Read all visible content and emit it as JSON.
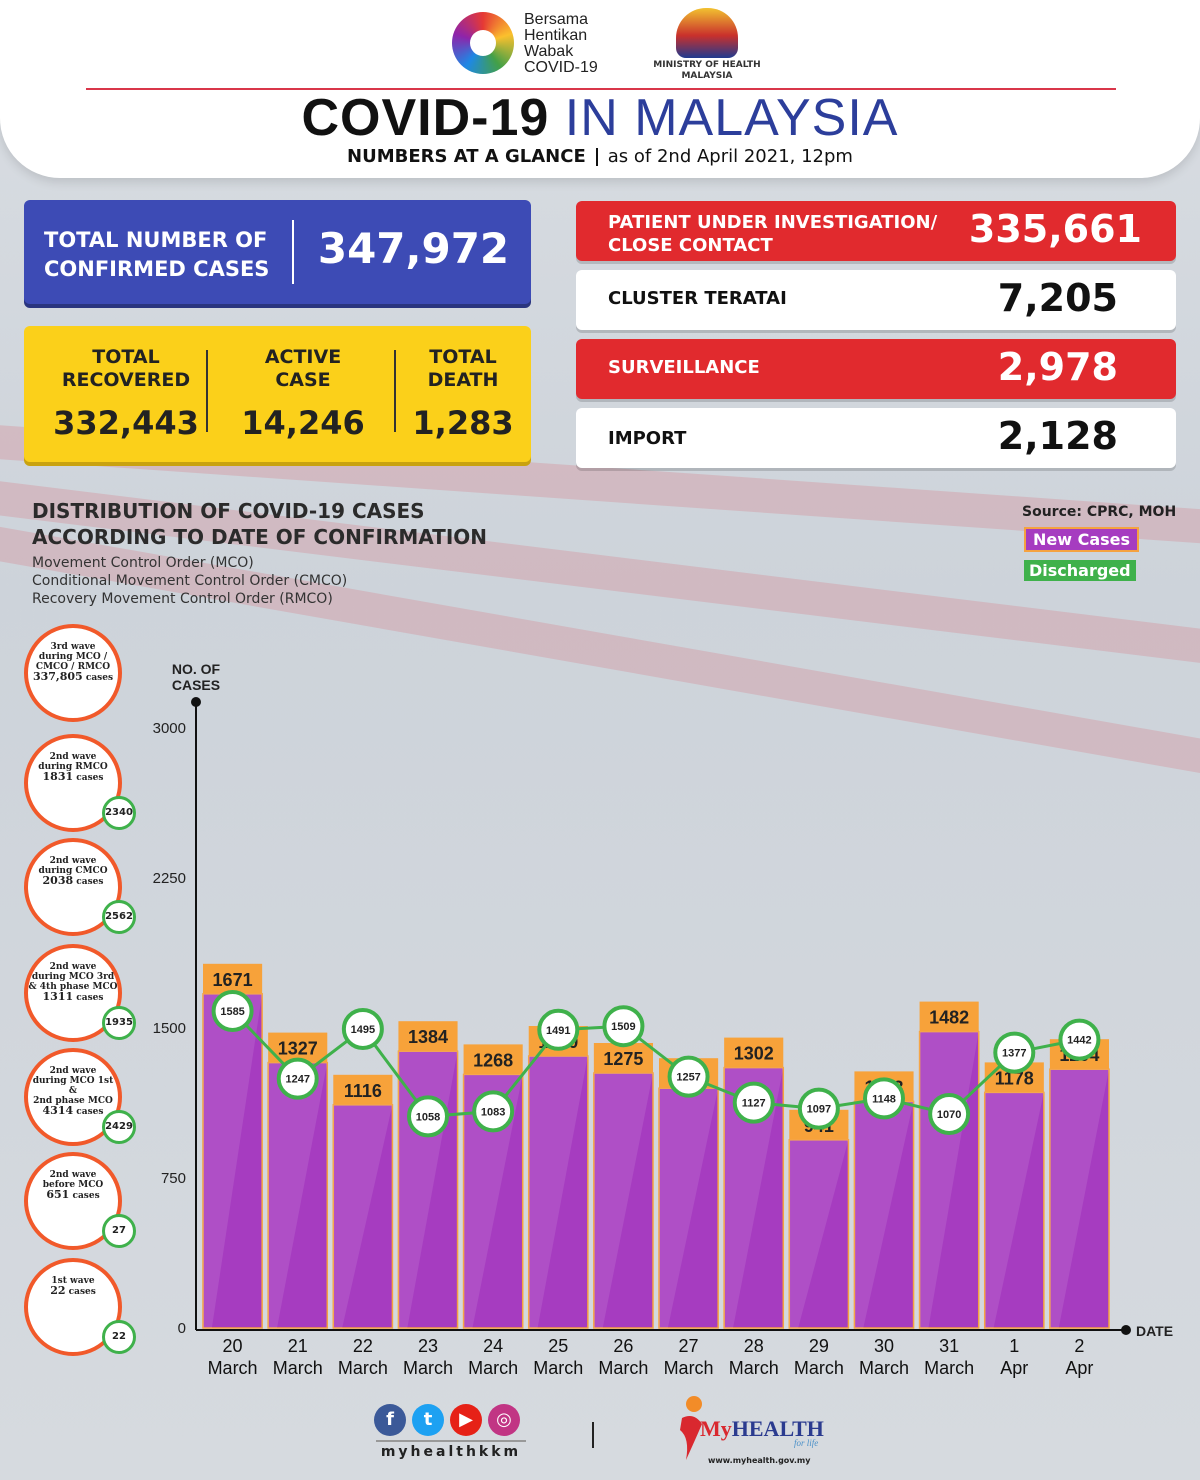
{
  "header": {
    "logo_lines": [
      "Bersama",
      "Hentikan",
      "Wabak",
      "COVID-19"
    ],
    "ministry_line1": "MINISTRY OF HEALTH",
    "ministry_line2": "MALAYSIA",
    "title_bold": "COVID-19",
    "title_blue": "IN MALAYSIA",
    "subtitle_bold": "NUMBERS AT A GLANCE",
    "subtitle_date": "as of 2nd April 2021, 12pm"
  },
  "summary": {
    "confirmed_label_1": "TOTAL NUMBER OF",
    "confirmed_label_2": "CONFIRMED CASES",
    "confirmed_value": "347,972",
    "recovered_label_1": "TOTAL",
    "recovered_label_2": "RECOVERED",
    "recovered_value": "332,443",
    "active_label_1": "ACTIVE",
    "active_label_2": "CASE",
    "active_value": "14,246",
    "death_label_1": "TOTAL",
    "death_label_2": "DEATH",
    "death_value": "1,283"
  },
  "categories": [
    {
      "label_1": "PATIENT UNDER INVESTIGATION/",
      "label_2": "CLOSE CONTACT",
      "value": "335,661",
      "color": "#e12a2e"
    },
    {
      "label_1": "CLUSTER TERATAI",
      "value": "7,205",
      "color": "#ffffff"
    },
    {
      "label_1": "SURVEILLANCE",
      "value": "2,978",
      "color": "#e12a2e"
    },
    {
      "label_1": "IMPORT",
      "value": "2,128",
      "color": "#ffffff"
    }
  ],
  "distribution": {
    "title_1": "DISTRIBUTION OF COVID-19 CASES",
    "title_2": "ACCORDING TO DATE OF CONFIRMATION",
    "notes": [
      "Movement Control Order (MCO)",
      "Conditional Movement Control Order (CMCO)",
      "Recovery Movement Control Order (RMCO)"
    ],
    "source": "Source: CPRC, MOH",
    "legend_new": "New Cases",
    "legend_discharged": "Discharged"
  },
  "waves": [
    {
      "line_1": "3rd wave",
      "line_2": "during MCO /",
      "line_3": "CMCO / RMCO",
      "count": "337,805",
      "unit": "cases",
      "discharged": ""
    },
    {
      "line_1": "2nd wave",
      "line_2": "during RMCO",
      "line_3": "",
      "count": "1831",
      "unit": "cases",
      "discharged": "2340"
    },
    {
      "line_1": "2nd wave",
      "line_2": "during CMCO",
      "line_3": "",
      "count": "2038",
      "unit": "cases",
      "discharged": "2562"
    },
    {
      "line_1": "2nd wave",
      "line_2": "during MCO 3rd",
      "line_3": "& 4th phase MCO",
      "count": "1311",
      "unit": "cases",
      "discharged": "1935"
    },
    {
      "line_1": "2nd wave",
      "line_2": "during MCO 1st &",
      "line_3": "2nd phase MCO",
      "count": "4314",
      "unit": "cases",
      "discharged": "2429"
    },
    {
      "line_1": "2nd wave",
      "line_2": "before MCO",
      "line_3": "",
      "count": "651",
      "unit": "cases",
      "discharged": "27"
    },
    {
      "line_1": "1st wave",
      "line_2": "",
      "line_3": "",
      "count": "22",
      "unit": "cases",
      "discharged": "22"
    }
  ],
  "chart_data": {
    "type": "bar",
    "ylabel_1": "NO. OF",
    "ylabel_2": "CASES",
    "xlabel": "DATE",
    "ylim": [
      0,
      3000
    ],
    "yticks": [
      0,
      750,
      1500,
      2250,
      3000
    ],
    "categories": [
      {
        "day": "20",
        "month": "March"
      },
      {
        "day": "21",
        "month": "March"
      },
      {
        "day": "22",
        "month": "March"
      },
      {
        "day": "23",
        "month": "March"
      },
      {
        "day": "24",
        "month": "March"
      },
      {
        "day": "25",
        "month": "March"
      },
      {
        "day": "26",
        "month": "March"
      },
      {
        "day": "27",
        "month": "March"
      },
      {
        "day": "28",
        "month": "March"
      },
      {
        "day": "29",
        "month": "March"
      },
      {
        "day": "30",
        "month": "March"
      },
      {
        "day": "31",
        "month": "March"
      },
      {
        "day": "1",
        "month": "Apr"
      },
      {
        "day": "2",
        "month": "Apr"
      }
    ],
    "series": [
      {
        "name": "New Cases",
        "type": "bar",
        "color": "#a63cc0",
        "label_color": "#f7a23a",
        "values": [
          1671,
          1327,
          1116,
          1384,
          1268,
          1360,
          1275,
          1199,
          1302,
          941,
          1133,
          1482,
          1178,
          1294
        ]
      },
      {
        "name": "Discharged",
        "type": "line",
        "color": "#3fb14b",
        "values": [
          1585,
          1247,
          1495,
          1058,
          1083,
          1491,
          1509,
          1257,
          1127,
          1097,
          1148,
          1070,
          1377,
          1442
        ]
      }
    ]
  },
  "footer": {
    "social_icons": [
      "facebook-icon",
      "twitter-icon",
      "youtube-icon",
      "instagram-icon"
    ],
    "handle": "myhealthkkm",
    "brand_m": "My",
    "brand_rest": "HEALTH",
    "brand_tagline": "for life",
    "brand_url": "www.myhealth.gov.my"
  }
}
